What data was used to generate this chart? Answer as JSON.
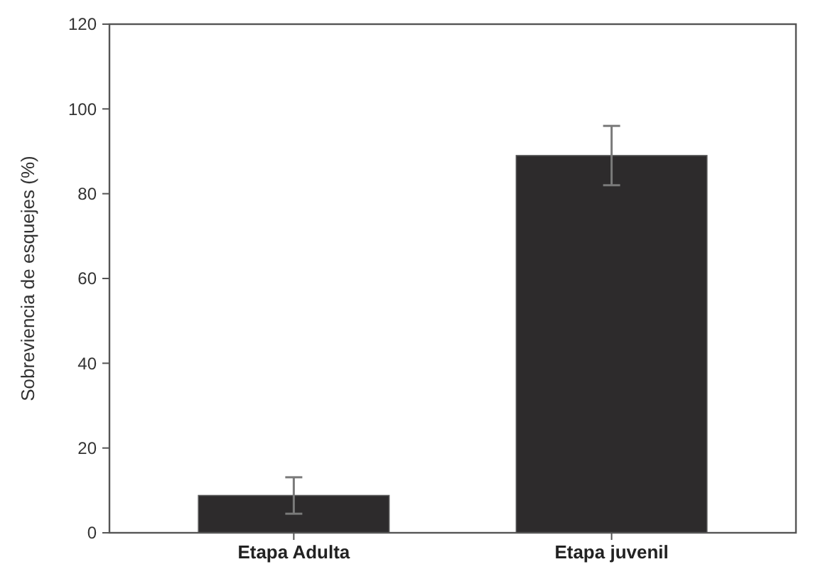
{
  "chart_data": {
    "type": "bar",
    "ylabel": "Sobreviencia de esquejes (%)",
    "categories": [
      "Etapa Adulta",
      "Etapa juvenil"
    ],
    "values": [
      8.8,
      89
    ],
    "errors": [
      4.3,
      7
    ],
    "color": "#2d2b2c",
    "ylim": [
      0,
      120
    ],
    "yticks": [
      0,
      20,
      40,
      60,
      80,
      100,
      120
    ],
    "grid": false
  }
}
